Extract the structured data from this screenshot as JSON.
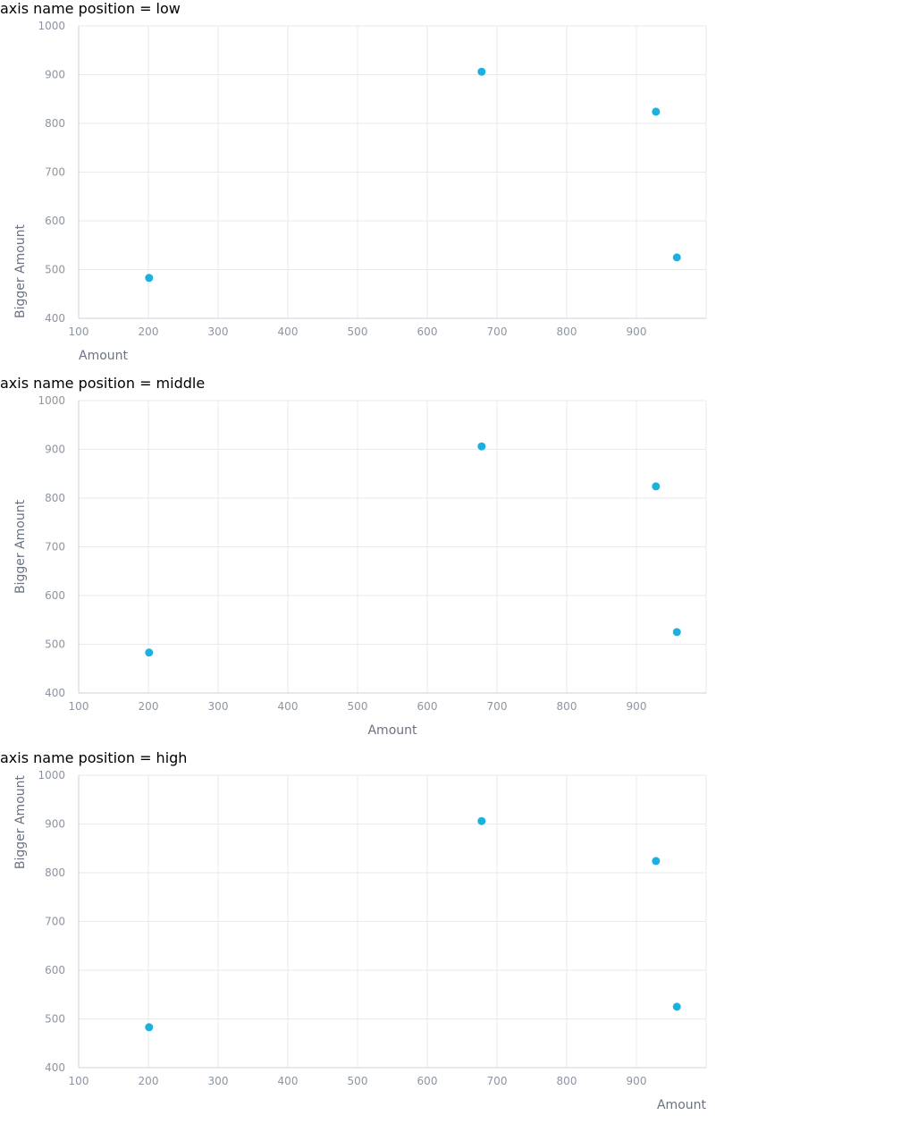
{
  "colors": {
    "point": "#1ab0e0",
    "grid": "#e8eaee",
    "axis": "#ccd0d7",
    "tick_text": "#8c95a3",
    "axis_name": "#6b7280"
  },
  "chart_data": [
    {
      "type": "scatter",
      "title": "axis name position = low",
      "xlabel": "Amount",
      "ylabel": "Bigger Amount",
      "axis_name_position": "low",
      "xlim": [
        100,
        1000
      ],
      "ylim": [
        400,
        1000
      ],
      "xticks": [
        100,
        200,
        300,
        400,
        500,
        600,
        700,
        800,
        900
      ],
      "yticks": [
        400,
        500,
        600,
        700,
        800,
        900,
        1000
      ],
      "grid": true,
      "points": [
        {
          "x": 201,
          "y": 483
        },
        {
          "x": 678,
          "y": 906
        },
        {
          "x": 928,
          "y": 824
        },
        {
          "x": 958,
          "y": 525
        }
      ]
    },
    {
      "type": "scatter",
      "title": "axis name position = middle",
      "xlabel": "Amount",
      "ylabel": "Bigger Amount",
      "axis_name_position": "middle",
      "xlim": [
        100,
        1000
      ],
      "ylim": [
        400,
        1000
      ],
      "xticks": [
        100,
        200,
        300,
        400,
        500,
        600,
        700,
        800,
        900
      ],
      "yticks": [
        400,
        500,
        600,
        700,
        800,
        900,
        1000
      ],
      "grid": true,
      "points": [
        {
          "x": 201,
          "y": 483
        },
        {
          "x": 678,
          "y": 906
        },
        {
          "x": 928,
          "y": 824
        },
        {
          "x": 958,
          "y": 525
        }
      ]
    },
    {
      "type": "scatter",
      "title": "axis name position = high",
      "xlabel": "Amount",
      "ylabel": "Bigger Amount",
      "axis_name_position": "high",
      "xlim": [
        100,
        1000
      ],
      "ylim": [
        400,
        1000
      ],
      "xticks": [
        100,
        200,
        300,
        400,
        500,
        600,
        700,
        800,
        900
      ],
      "yticks": [
        400,
        500,
        600,
        700,
        800,
        900,
        1000
      ],
      "grid": true,
      "points": [
        {
          "x": 201,
          "y": 483
        },
        {
          "x": 678,
          "y": 906
        },
        {
          "x": 928,
          "y": 824
        },
        {
          "x": 958,
          "y": 525
        }
      ]
    }
  ]
}
